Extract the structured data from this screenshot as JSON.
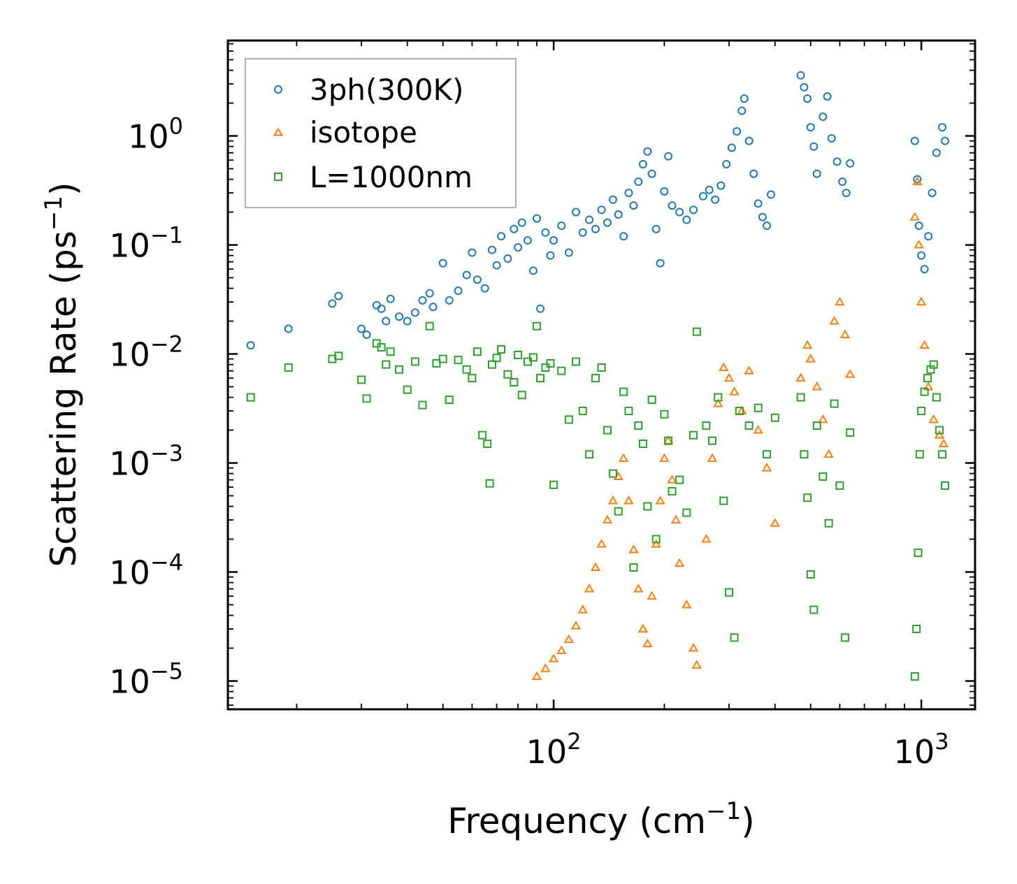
{
  "chart_data": {
    "type": "scatter",
    "xscale": "log",
    "yscale": "log",
    "xlim": [
      13,
      1400
    ],
    "ylim": [
      5.5e-06,
      7.5
    ],
    "xlabel": "Frequency (cm",
    "xlabel_sup": "−1",
    "xlabel_close": ")",
    "ylabel": "Scattering Rate (ps",
    "ylabel_sup": "−1",
    "ylabel_close": ")",
    "xticks": [
      {
        "value": 100,
        "base": "10",
        "exp": "2"
      },
      {
        "value": 1000,
        "base": "10",
        "exp": "3"
      }
    ],
    "yticks": [
      {
        "value": 1,
        "base": "10",
        "exp": "0"
      },
      {
        "value": 0.1,
        "base": "10",
        "exp": "−1"
      },
      {
        "value": 0.01,
        "base": "10",
        "exp": "−2"
      },
      {
        "value": 0.001,
        "base": "10",
        "exp": "−3"
      },
      {
        "value": 0.0001,
        "base": "10",
        "exp": "−4"
      },
      {
        "value": 1e-05,
        "base": "10",
        "exp": "−5"
      }
    ],
    "legend_position": "top-left",
    "series": [
      {
        "name": "3ph(300K)",
        "marker": "circle",
        "color": "#1f77b4",
        "points": [
          [
            15,
            0.012
          ],
          [
            19,
            0.017
          ],
          [
            25,
            0.029
          ],
          [
            26,
            0.034
          ],
          [
            30,
            0.017
          ],
          [
            31,
            0.015
          ],
          [
            33,
            0.028
          ],
          [
            34,
            0.026
          ],
          [
            35,
            0.02
          ],
          [
            36,
            0.032
          ],
          [
            38,
            0.022
          ],
          [
            40,
            0.02
          ],
          [
            42,
            0.024
          ],
          [
            44,
            0.031
          ],
          [
            46,
            0.036
          ],
          [
            47,
            0.027
          ],
          [
            50,
            0.068
          ],
          [
            52,
            0.031
          ],
          [
            55,
            0.038
          ],
          [
            58,
            0.053
          ],
          [
            60,
            0.085
          ],
          [
            62,
            0.048
          ],
          [
            65,
            0.04
          ],
          [
            68,
            0.09
          ],
          [
            70,
            0.065
          ],
          [
            72,
            0.12
          ],
          [
            75,
            0.075
          ],
          [
            78,
            0.14
          ],
          [
            80,
            0.095
          ],
          [
            82,
            0.16
          ],
          [
            85,
            0.11
          ],
          [
            88,
            0.058
          ],
          [
            90,
            0.175
          ],
          [
            92,
            0.026
          ],
          [
            95,
            0.13
          ],
          [
            98,
            0.08
          ],
          [
            100,
            0.11
          ],
          [
            105,
            0.15
          ],
          [
            110,
            0.085
          ],
          [
            115,
            0.2
          ],
          [
            120,
            0.13
          ],
          [
            125,
            0.17
          ],
          [
            130,
            0.14
          ],
          [
            135,
            0.21
          ],
          [
            140,
            0.16
          ],
          [
            145,
            0.26
          ],
          [
            150,
            0.19
          ],
          [
            155,
            0.12
          ],
          [
            160,
            0.3
          ],
          [
            165,
            0.23
          ],
          [
            170,
            0.38
          ],
          [
            175,
            0.55
          ],
          [
            180,
            0.72
          ],
          [
            185,
            0.45
          ],
          [
            190,
            0.14
          ],
          [
            195,
            0.068
          ],
          [
            200,
            0.31
          ],
          [
            205,
            0.65
          ],
          [
            210,
            0.23
          ],
          [
            220,
            0.2
          ],
          [
            230,
            0.17
          ],
          [
            240,
            0.21
          ],
          [
            255,
            0.28
          ],
          [
            265,
            0.32
          ],
          [
            275,
            0.26
          ],
          [
            285,
            0.35
          ],
          [
            295,
            0.55
          ],
          [
            305,
            0.78
          ],
          [
            315,
            1.1
          ],
          [
            325,
            1.7
          ],
          [
            330,
            2.2
          ],
          [
            340,
            0.9
          ],
          [
            350,
            0.45
          ],
          [
            360,
            0.24
          ],
          [
            370,
            0.18
          ],
          [
            380,
            0.15
          ],
          [
            390,
            0.29
          ],
          [
            470,
            3.6
          ],
          [
            480,
            2.8
          ],
          [
            490,
            2.2
          ],
          [
            500,
            1.2
          ],
          [
            510,
            0.8
          ],
          [
            520,
            0.45
          ],
          [
            540,
            1.5
          ],
          [
            555,
            2.3
          ],
          [
            570,
            0.95
          ],
          [
            590,
            0.58
          ],
          [
            610,
            0.38
          ],
          [
            625,
            0.3
          ],
          [
            640,
            0.56
          ],
          [
            960,
            0.9
          ],
          [
            975,
            0.4
          ],
          [
            985,
            0.15
          ],
          [
            1000,
            0.08
          ],
          [
            1020,
            0.06
          ],
          [
            1045,
            0.12
          ],
          [
            1070,
            0.3
          ],
          [
            1100,
            0.7
          ],
          [
            1140,
            1.2
          ],
          [
            1160,
            0.9
          ]
        ]
      },
      {
        "name": "isotope",
        "marker": "triangle",
        "color": "#ff7f0e",
        "points": [
          [
            90,
            1.1e-05
          ],
          [
            95,
            1.3e-05
          ],
          [
            100,
            1.6e-05
          ],
          [
            105,
            1.9e-05
          ],
          [
            110,
            2.4e-05
          ],
          [
            115,
            3.2e-05
          ],
          [
            120,
            4.5e-05
          ],
          [
            125,
            7e-05
          ],
          [
            130,
            0.00011
          ],
          [
            135,
            0.00018
          ],
          [
            140,
            0.0003
          ],
          [
            145,
            0.00045
          ],
          [
            150,
            0.00075
          ],
          [
            155,
            0.0011
          ],
          [
            160,
            0.00045
          ],
          [
            165,
            0.00016
          ],
          [
            170,
            7e-05
          ],
          [
            175,
            3e-05
          ],
          [
            180,
            2.2e-05
          ],
          [
            185,
            6e-05
          ],
          [
            190,
            0.00018
          ],
          [
            195,
            0.00045
          ],
          [
            200,
            0.0011
          ],
          [
            205,
            0.0016
          ],
          [
            210,
            0.0007
          ],
          [
            215,
            0.0003
          ],
          [
            220,
            0.00012
          ],
          [
            230,
            5e-05
          ],
          [
            240,
            2e-05
          ],
          [
            245,
            1.4e-05
          ],
          [
            260,
            0.0002
          ],
          [
            270,
            0.0011
          ],
          [
            280,
            0.0035
          ],
          [
            290,
            0.0075
          ],
          [
            300,
            0.006
          ],
          [
            310,
            0.0045
          ],
          [
            325,
            0.003
          ],
          [
            340,
            0.007
          ],
          [
            360,
            0.002
          ],
          [
            380,
            0.0009
          ],
          [
            400,
            0.00028
          ],
          [
            470,
            0.006
          ],
          [
            490,
            0.012
          ],
          [
            500,
            0.009
          ],
          [
            520,
            0.005
          ],
          [
            540,
            0.0025
          ],
          [
            560,
            0.0012
          ],
          [
            580,
            0.02
          ],
          [
            600,
            0.03
          ],
          [
            620,
            0.015
          ],
          [
            640,
            0.0065
          ],
          [
            960,
            0.18
          ],
          [
            975,
            0.38
          ],
          [
            985,
            0.1
          ],
          [
            1000,
            0.03
          ],
          [
            1020,
            0.012
          ],
          [
            1045,
            0.005
          ],
          [
            1080,
            0.0025
          ],
          [
            1120,
            0.0018
          ],
          [
            1150,
            0.0015
          ]
        ]
      },
      {
        "name": "L=1000nm",
        "marker": "square",
        "color": "#2ca02c",
        "points": [
          [
            15,
            0.004
          ],
          [
            19,
            0.0075
          ],
          [
            25,
            0.009
          ],
          [
            26,
            0.0096
          ],
          [
            30,
            0.0058
          ],
          [
            31,
            0.0039
          ],
          [
            33,
            0.0125
          ],
          [
            34,
            0.0115
          ],
          [
            35,
            0.008
          ],
          [
            36,
            0.0105
          ],
          [
            38,
            0.0072
          ],
          [
            40,
            0.0047
          ],
          [
            42,
            0.0085
          ],
          [
            44,
            0.0034
          ],
          [
            46,
            0.018
          ],
          [
            48,
            0.0082
          ],
          [
            50,
            0.009
          ],
          [
            52,
            0.0038
          ],
          [
            55,
            0.0088
          ],
          [
            58,
            0.0072
          ],
          [
            60,
            0.006
          ],
          [
            62,
            0.0105
          ],
          [
            64,
            0.0018
          ],
          [
            66,
            0.0015
          ],
          [
            67,
            0.00065
          ],
          [
            68,
            0.008
          ],
          [
            70,
            0.0092
          ],
          [
            72,
            0.011
          ],
          [
            75,
            0.0065
          ],
          [
            78,
            0.0055
          ],
          [
            80,
            0.0098
          ],
          [
            82,
            0.0042
          ],
          [
            85,
            0.0085
          ],
          [
            88,
            0.0093
          ],
          [
            90,
            0.018
          ],
          [
            92,
            0.006
          ],
          [
            95,
            0.0075
          ],
          [
            98,
            0.0082
          ],
          [
            100,
            0.00063
          ],
          [
            105,
            0.007
          ],
          [
            110,
            0.0025
          ],
          [
            115,
            0.0085
          ],
          [
            120,
            0.003
          ],
          [
            125,
            0.0012
          ],
          [
            130,
            0.006
          ],
          [
            135,
            0.0075
          ],
          [
            140,
            0.002
          ],
          [
            145,
            0.0008
          ],
          [
            150,
            0.00036
          ],
          [
            155,
            0.0045
          ],
          [
            160,
            0.003
          ],
          [
            165,
            0.00011
          ],
          [
            170,
            0.0022
          ],
          [
            175,
            0.0015
          ],
          [
            180,
            0.0004
          ],
          [
            185,
            0.0038
          ],
          [
            190,
            0.0002
          ],
          [
            200,
            0.0028
          ],
          [
            205,
            0.0016
          ],
          [
            210,
            0.00055
          ],
          [
            220,
            0.0007
          ],
          [
            230,
            0.00035
          ],
          [
            240,
            0.0018
          ],
          [
            245,
            0.016
          ],
          [
            260,
            0.0022
          ],
          [
            270,
            0.0016
          ],
          [
            280,
            0.004
          ],
          [
            290,
            0.00045
          ],
          [
            300,
            6.5e-05
          ],
          [
            310,
            2.5e-05
          ],
          [
            320,
            0.003
          ],
          [
            340,
            0.0022
          ],
          [
            360,
            0.0032
          ],
          [
            380,
            0.0012
          ],
          [
            400,
            0.0026
          ],
          [
            470,
            0.004
          ],
          [
            480,
            0.0012
          ],
          [
            490,
            0.00048
          ],
          [
            500,
            9.5e-05
          ],
          [
            510,
            4.5e-05
          ],
          [
            520,
            0.0022
          ],
          [
            540,
            0.00075
          ],
          [
            560,
            0.00028
          ],
          [
            580,
            0.0035
          ],
          [
            600,
            0.00062
          ],
          [
            620,
            2.5e-05
          ],
          [
            640,
            0.0019
          ],
          [
            960,
            1.1e-05
          ],
          [
            970,
            3e-05
          ],
          [
            980,
            0.00015
          ],
          [
            990,
            0.0012
          ],
          [
            1000,
            0.003
          ],
          [
            1020,
            0.0045
          ],
          [
            1040,
            0.006
          ],
          [
            1060,
            0.0072
          ],
          [
            1080,
            0.008
          ],
          [
            1100,
            0.004
          ],
          [
            1120,
            0.002
          ],
          [
            1140,
            0.0012
          ],
          [
            1160,
            0.00062
          ]
        ]
      }
    ]
  }
}
